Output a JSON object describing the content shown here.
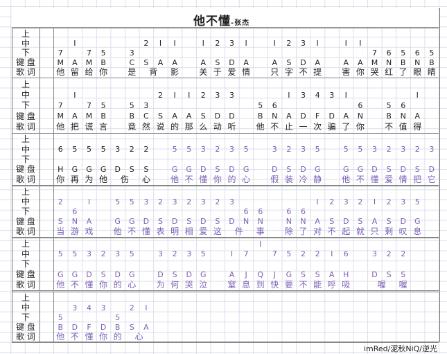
{
  "title": {
    "song": "他不懂",
    "artist": "-张杰"
  },
  "row_labels": [
    "上",
    "中",
    "下",
    "键 盘",
    "歌 词"
  ],
  "colors": {
    "text": "#222222",
    "purple": "#7b5fb5",
    "grid": "#dcdeeb"
  },
  "blocks": [
    {
      "purple_from": 27,
      "up": [
        "",
        "",
        "",
        "",
        "",
        "",
        "",
        "",
        "",
        "",
        "",
        "",
        "",
        "",
        "",
        "",
        "",
        "",
        "",
        "",
        "",
        "",
        "",
        "",
        "",
        "",
        ""
      ],
      "mid": [
        "",
        "I",
        "",
        "",
        "",
        "",
        "2",
        "I",
        "I",
        "",
        "I",
        "2",
        "3",
        "I",
        "",
        "I",
        "2",
        "3",
        "I",
        "",
        "I",
        "I",
        "",
        "",
        "",
        "",
        ""
      ],
      "low": [
        "7",
        "",
        "7",
        "5",
        "",
        "3",
        "",
        "",
        "",
        "",
        "",
        "",
        "",
        "",
        "",
        "",
        "",
        "",
        "",
        "",
        "",
        "",
        "7",
        "6",
        "5",
        "6",
        "5"
      ],
      "keys": [
        "M",
        "A",
        "M",
        "B",
        "",
        "C",
        "S",
        "A",
        "A",
        "",
        "A",
        "S",
        "D",
        "A",
        "",
        "A",
        "S",
        "D",
        "A",
        "",
        "A",
        "A",
        "M",
        "N",
        "B",
        "N",
        "B"
      ],
      "lyrics": [
        "他",
        "留",
        "给",
        "你",
        "",
        "是",
        "背",
        null,
        "影",
        "",
        "关",
        "于",
        "爱",
        "情",
        "",
        "只",
        "字",
        "不",
        "提",
        "",
        "害",
        "你",
        "哭",
        "红",
        "了",
        "眼",
        "睛"
      ]
    },
    {
      "purple_from": 27,
      "up": [
        "",
        "",
        "",
        "",
        "",
        "",
        "",
        "",
        "",
        "",
        "",
        "",
        "",
        "",
        "",
        "",
        "",
        "",
        "",
        "",
        "",
        "",
        "",
        "",
        "",
        "",
        ""
      ],
      "mid": [
        "",
        "I",
        "",
        "",
        "",
        "",
        "",
        "2",
        "I",
        "I",
        "2",
        "3",
        "3",
        "",
        "",
        "",
        "I",
        "3",
        "4",
        "3",
        "I",
        "",
        "",
        "",
        "",
        "I",
        ""
      ],
      "low": [
        "7",
        "",
        "7",
        "5",
        "",
        "5",
        "3",
        "",
        "",
        "",
        "",
        "",
        "",
        "",
        "5",
        "6",
        "",
        "",
        "",
        "",
        "",
        "6",
        "",
        "5",
        "6",
        "",
        ""
      ],
      "keys": [
        "M",
        "A",
        "M",
        "B",
        "",
        "B",
        "C",
        "S",
        "A",
        "A",
        "S",
        "D",
        "D",
        "",
        "B",
        "N",
        "A",
        "D",
        "F",
        "D",
        "A",
        "N",
        "",
        "B",
        "N",
        "A",
        ""
      ],
      "lyrics": [
        "他",
        "把",
        "谎",
        "言",
        "",
        "竟",
        "然",
        "说",
        "的",
        "那",
        "么",
        "动",
        "听",
        "",
        "他",
        "不",
        "止",
        "一",
        "次",
        "骗",
        "了",
        "你",
        "",
        "不",
        "值",
        "得",
        ""
      ]
    },
    {
      "purple_from": 8,
      "up": [
        "",
        "",
        "",
        "",
        "",
        "",
        "",
        "",
        "",
        "",
        "",
        "",
        "",
        "",
        "",
        "",
        "",
        "",
        "",
        "",
        "",
        "",
        "",
        "",
        "",
        "",
        ""
      ],
      "mid": [
        "6",
        "5",
        "5",
        "5",
        "3",
        "2",
        "2",
        "",
        "5",
        "5",
        "3",
        "2",
        "3",
        "5",
        "",
        "3",
        "2",
        "3",
        "5",
        "",
        "5",
        "5",
        "3",
        "2",
        "3",
        "2",
        "3"
      ],
      "low": [
        "",
        "",
        "",
        "",
        "",
        "",
        "",
        "",
        "",
        "",
        "",
        "",
        "",
        "",
        "",
        "",
        "",
        "",
        "",
        "",
        "",
        "",
        "",
        "",
        "",
        "",
        ""
      ],
      "keys": [
        "H",
        "G",
        "G",
        "G",
        "D",
        "S",
        "S",
        "",
        "G",
        "G",
        "D",
        "S",
        "D",
        "G",
        "",
        "D",
        "S",
        "D",
        "G",
        "",
        "G",
        "G",
        "D",
        "S",
        "D",
        "S",
        "D"
      ],
      "lyrics": [
        "你",
        "再",
        "为",
        "他",
        "伤",
        null,
        "心",
        "",
        "他",
        "不",
        "懂",
        "你",
        "的",
        "心",
        "",
        "假",
        "装",
        "冷",
        "静",
        "",
        "他",
        "不",
        "懂",
        "爱",
        "情",
        "把",
        "它"
      ]
    },
    {
      "purple_from": 0,
      "up": [
        "",
        "",
        "",
        "",
        "",
        "",
        "",
        "",
        "",
        "",
        "",
        "",
        "",
        "",
        "",
        "",
        "",
        "",
        "",
        "",
        "",
        "",
        "",
        "",
        "",
        "",
        ""
      ],
      "mid": [
        "2",
        "",
        "I",
        "",
        "5",
        "5",
        "3",
        "2",
        "3",
        "2",
        "3",
        "2",
        "3",
        "",
        "",
        "",
        "",
        "",
        "I",
        "2",
        "3",
        "2",
        "I",
        "2",
        "3",
        "5",
        ""
      ],
      "low": [
        "",
        "6",
        "",
        "",
        "",
        "",
        "",
        "",
        "",
        "",
        "",
        "",
        "",
        "6",
        "6",
        "",
        "6",
        "6",
        "",
        "",
        "",
        "",
        "",
        "",
        "",
        "",
        ""
      ],
      "keys": [
        "S",
        "N",
        "A",
        "",
        "G",
        "G",
        "D",
        "S",
        "D",
        "S",
        "D",
        "S",
        "D",
        "N",
        "N",
        "",
        "N",
        "N",
        "A",
        "S",
        "D",
        "S",
        "A",
        "S",
        "D",
        "G",
        ""
      ],
      "lyrics": [
        "当",
        "游",
        "戏",
        "",
        "他",
        "不",
        "懂",
        "表",
        "明",
        "相",
        "爱",
        "这",
        "件",
        null,
        "事",
        "",
        "除",
        "了",
        "对",
        "不",
        "起",
        "就",
        "只",
        "剩",
        "叹",
        "息",
        ""
      ]
    },
    {
      "purple_from": 0,
      "up": [
        "",
        "",
        "",
        "",
        "",
        "",
        "",
        "",
        "",
        "",
        "",
        "",
        "",
        "",
        "I",
        "",
        "",
        "",
        "",
        "",
        "",
        "",
        "",
        "",
        "",
        "",
        ""
      ],
      "mid": [
        "5",
        "5",
        "3",
        "2",
        "3",
        "5",
        "",
        "3",
        "2",
        "3",
        "5",
        "",
        "I",
        "7",
        "",
        "7",
        "5",
        "2",
        "2",
        "I",
        "6",
        "",
        "3",
        "2",
        "2",
        "",
        ""
      ],
      "low": [
        "",
        "",
        "",
        "",
        "",
        "",
        "",
        "",
        "",
        "",
        "",
        "",
        "",
        "",
        "",
        "",
        "",
        "",
        "",
        "",
        "",
        "",
        "",
        "",
        "",
        "",
        ""
      ],
      "keys": [
        "G",
        "G",
        "D",
        "S",
        "D",
        "G",
        "",
        "D",
        "S",
        "D",
        "G",
        "",
        "A",
        "J",
        "Q",
        "J",
        "G",
        "S",
        "S",
        "A",
        "H",
        "",
        "D",
        "S",
        "S",
        "",
        ""
      ],
      "lyrics": [
        "他",
        "不",
        "懂",
        "你",
        "的",
        "心",
        "",
        "为",
        "何",
        "哭",
        "泣",
        "",
        "窒",
        "息",
        "到",
        "快",
        "要",
        "不",
        "能",
        "呼",
        "吸",
        "",
        "喔",
        null,
        "喔",
        "",
        ""
      ]
    },
    {
      "purple_from": 0,
      "up": [
        "",
        "",
        "",
        "",
        "",
        "",
        "",
        "",
        "",
        "",
        "",
        "",
        "",
        "",
        "",
        "",
        "",
        "",
        "",
        "",
        "",
        "",
        "",
        "",
        "",
        "",
        ""
      ],
      "mid": [
        "",
        "3",
        "4",
        "3",
        "",
        "2",
        "I",
        "",
        "",
        "",
        "",
        "",
        "",
        "",
        "",
        "",
        "",
        "",
        "",
        "",
        "",
        "",
        "",
        "",
        "",
        "",
        ""
      ],
      "low": [
        "5",
        "",
        "",
        "",
        "5",
        "",
        "",
        "",
        "",
        "",
        "",
        "",
        "",
        "",
        "",
        "",
        "",
        "",
        "",
        "",
        "",
        "",
        "",
        "",
        "",
        "",
        ""
      ],
      "keys": [
        "B",
        "D",
        "F",
        "D",
        "B",
        "S",
        "A",
        "",
        "",
        "",
        "",
        "",
        "",
        "",
        "",
        "",
        "",
        "",
        "",
        "",
        "",
        "",
        "",
        "",
        "",
        "",
        ""
      ],
      "lyrics": [
        "他",
        "不",
        "懂",
        "你",
        "的",
        "心",
        null,
        "",
        "",
        "",
        "",
        "",
        "",
        "",
        "",
        "",
        "",
        "",
        "",
        "",
        "",
        "",
        "",
        "",
        "",
        "",
        ""
      ]
    }
  ],
  "footer": {
    "credit": "imRed/泥秋NiQ/逆光"
  }
}
